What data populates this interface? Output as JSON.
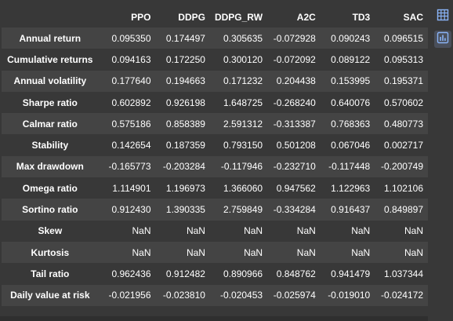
{
  "table": {
    "columns": [
      "",
      "PPO",
      "DDPG",
      "DDPG_RW",
      "A2C",
      "TD3",
      "SAC"
    ],
    "rows": [
      {
        "label": "Annual return",
        "values": [
          "0.095350",
          "0.174497",
          "0.305635",
          "-0.072928",
          "0.090243",
          "0.096515"
        ]
      },
      {
        "label": "Cumulative returns",
        "values": [
          "0.094163",
          "0.172250",
          "0.300120",
          "-0.072092",
          "0.089122",
          "0.095313"
        ]
      },
      {
        "label": "Annual volatility",
        "values": [
          "0.177640",
          "0.194663",
          "0.171232",
          "0.204438",
          "0.153995",
          "0.195371"
        ]
      },
      {
        "label": "Sharpe ratio",
        "values": [
          "0.602892",
          "0.926198",
          "1.648725",
          "-0.268240",
          "0.640076",
          "0.570602"
        ]
      },
      {
        "label": "Calmar ratio",
        "values": [
          "0.575186",
          "0.858389",
          "2.591312",
          "-0.313387",
          "0.768363",
          "0.480773"
        ]
      },
      {
        "label": "Stability",
        "values": [
          "0.142654",
          "0.187359",
          "0.793150",
          "0.501208",
          "0.067046",
          "0.002717"
        ]
      },
      {
        "label": "Max drawdown",
        "values": [
          "-0.165773",
          "-0.203284",
          "-0.117946",
          "-0.232710",
          "-0.117448",
          "-0.200749"
        ]
      },
      {
        "label": "Omega ratio",
        "values": [
          "1.114901",
          "1.196973",
          "1.366060",
          "0.947562",
          "1.122963",
          "1.102106"
        ]
      },
      {
        "label": "Sortino ratio",
        "values": [
          "0.912430",
          "1.390335",
          "2.759849",
          "-0.334284",
          "0.916437",
          "0.849897"
        ]
      },
      {
        "label": "Skew",
        "values": [
          "NaN",
          "NaN",
          "NaN",
          "NaN",
          "NaN",
          "NaN"
        ]
      },
      {
        "label": "Kurtosis",
        "values": [
          "NaN",
          "NaN",
          "NaN",
          "NaN",
          "NaN",
          "NaN"
        ]
      },
      {
        "label": "Tail ratio",
        "values": [
          "0.962436",
          "0.912482",
          "0.890966",
          "0.848762",
          "0.941479",
          "1.037344"
        ]
      },
      {
        "label": "Daily value at risk",
        "values": [
          "-0.021956",
          "-0.023810",
          "-0.020453",
          "-0.025974",
          "-0.019010",
          "-0.024172"
        ]
      }
    ]
  },
  "toolbar": {
    "table_view_icon": "table-icon",
    "chart_view_icon": "bar-chart-icon"
  },
  "colors": {
    "background": "#383838",
    "row_alt": "#444444",
    "text": "#ffffff",
    "icon_accent": "#8ab4f8"
  }
}
